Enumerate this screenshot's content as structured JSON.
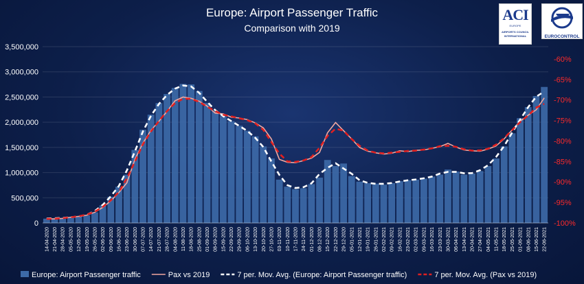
{
  "logos": {
    "aci": {
      "text": "ACI",
      "sub1": "EUROPE",
      "sub2": "AIRPORTS COUNCIL",
      "sub3": "INTERNATIONAL"
    },
    "eurocontrol": {
      "text": "EUROCONTROL"
    }
  },
  "chart_data": {
    "type": "bar",
    "title": "Europe: Airport Passenger Traffic",
    "subtitle": "Comparison with 2019",
    "y_left": {
      "ticks": [
        "0",
        "500,000",
        "1,000,000",
        "1,500,000",
        "2,000,000",
        "2,500,000",
        "3,000,000",
        "3,500,000"
      ],
      "min": 0,
      "max": 3500000
    },
    "y_right": {
      "ticks": [
        "-100%",
        "-95%",
        "-90%",
        "-85%",
        "-80%",
        "-75%",
        "-70%",
        "-65%",
        "-60%"
      ],
      "min": -100,
      "max": -57
    },
    "x_ticks": [
      "14-04-2020",
      "21-04-2020",
      "28-04-2020",
      "05-05-2020",
      "12-05-2020",
      "19-05-2020",
      "26-05-2020",
      "02-06-2020",
      "09-06-2020",
      "16-06-2020",
      "23-06-2020",
      "30-06-2020",
      "07-07-2020",
      "14-07-2020",
      "21-07-2020",
      "28-07-2020",
      "04-08-2020",
      "11-08-2020",
      "18-08-2020",
      "25-08-2020",
      "01-09-2020",
      "08-09-2020",
      "15-09-2020",
      "22-09-2020",
      "29-09-2020",
      "06-10-2020",
      "13-10-2020",
      "20-10-2020",
      "27-10-2020",
      "03-11-2020",
      "10-11-2020",
      "17-11-2020",
      "24-11-2020",
      "01-12-2020",
      "08-12-2020",
      "15-12-2020",
      "22-12-2020",
      "29-12-2020",
      "05-01-2021",
      "12-01-2021",
      "19-01-2021",
      "26-01-2021",
      "02-02-2021",
      "09-02-2021",
      "16-02-2021",
      "23-02-2021",
      "02-03-2021",
      "09-03-2021",
      "16-03-2021",
      "23-03-2021",
      "30-03-2021",
      "06-04-2021",
      "13-04-2021",
      "20-04-2021",
      "27-04-2021",
      "04-05-2021",
      "11-05-2021",
      "18-05-2021",
      "25-05-2021",
      "01-06-2021",
      "08-06-2021",
      "15-06-2021",
      "22-06-2021"
    ],
    "weekly_traffic": [
      85000,
      92000,
      100000,
      110000,
      130000,
      150000,
      210000,
      350000,
      520000,
      720000,
      960000,
      1450000,
      1850000,
      2150000,
      2380000,
      2560000,
      2680000,
      2760000,
      2750000,
      2620000,
      2380000,
      2220000,
      2120000,
      2020000,
      1930000,
      1830000,
      1720000,
      1520000,
      1280000,
      860000,
      720000,
      670000,
      690000,
      770000,
      900000,
      1250000,
      1130000,
      1180000,
      930000,
      820000,
      790000,
      780000,
      760000,
      790000,
      830000,
      850000,
      860000,
      880000,
      920000,
      960000,
      1060000,
      1020000,
      960000,
      980000,
      1030000,
      1130000,
      1280000,
      1520000,
      1780000,
      2080000,
      2300000,
      2520000,
      2700000
    ],
    "weekly_pax_vs_2019": [
      -99,
      -99,
      -98.9,
      -98.6,
      -98.4,
      -98.1,
      -97.4,
      -96.2,
      -94.6,
      -92.6,
      -90.2,
      -84.5,
      -80.5,
      -77.4,
      -75.2,
      -72.8,
      -70.2,
      -69.3,
      -69.6,
      -70.3,
      -71.5,
      -73.2,
      -73.4,
      -74.2,
      -74.4,
      -74.8,
      -75.6,
      -76.8,
      -79.5,
      -84.5,
      -85.2,
      -85.3,
      -84.8,
      -84.2,
      -82.8,
      -78.0,
      -75.5,
      -77.5,
      -79.5,
      -81.6,
      -82.5,
      -82.9,
      -83.2,
      -83.0,
      -82.4,
      -82.6,
      -82.3,
      -82.2,
      -81.8,
      -81.4,
      -80.6,
      -81.5,
      -82.2,
      -82.4,
      -82.5,
      -82.0,
      -81.2,
      -79.5,
      -77.3,
      -75.2,
      -73.7,
      -72.4,
      -69.5
    ],
    "series": [
      {
        "name": "Europe: Airport Passenger traffic",
        "type": "bar",
        "color": "#3d6aa8"
      },
      {
        "name": "Pax vs 2019",
        "type": "line",
        "color": "#f2a8a0"
      },
      {
        "name": "7 per. Mov. Avg. (Europe: Airport Passenger traffic)",
        "type": "dashed-line",
        "color": "#ffffff"
      },
      {
        "name": "7 per. Mov. Avg. (Pax vs 2019)",
        "type": "dashed-line",
        "color": "#e02020"
      }
    ],
    "legend_placement": "bottom",
    "grid": "horizontal"
  }
}
